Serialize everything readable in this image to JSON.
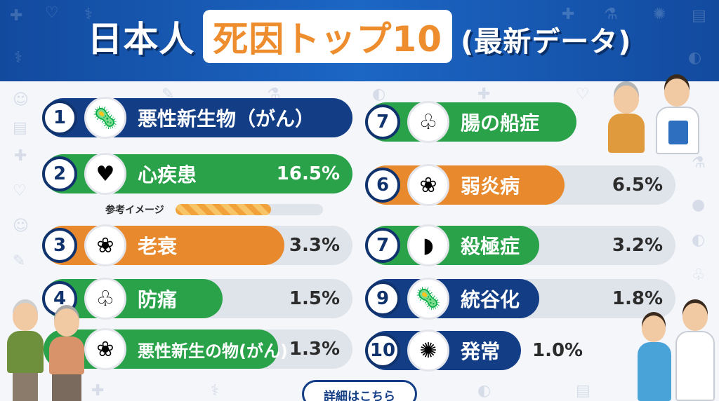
{
  "title": {
    "part1": "日本人",
    "part2": "死因トップ10",
    "part3": "(最新データ)"
  },
  "legend": {
    "label": "参考イメージ",
    "fill_fraction": 0.65
  },
  "left_column": [
    {
      "rank": "1",
      "icon": "virus-icon",
      "label": "悪性新生物（がん）",
      "percent": "",
      "color": "navy",
      "fill_fraction": 1.0
    },
    {
      "rank": "2",
      "icon": "heart-icon",
      "label": "心疾患",
      "percent": "16.5%",
      "color": "green",
      "fill_fraction": 1.0
    },
    {
      "rank": "3",
      "icon": "brain-icon",
      "label": "老衰",
      "percent": "3.3%",
      "color": "orange",
      "fill_fraction": 0.78
    },
    {
      "rank": "4",
      "icon": "lungs-icon",
      "label": "防痛",
      "percent": "1.5%",
      "color": "green",
      "fill_fraction": 0.58
    },
    {
      "rank": "",
      "icon": "brain-icon",
      "label": "悪性新生の物(がん)",
      "percent": "1.3%",
      "color": "green",
      "fill_fraction": 0.76
    }
  ],
  "right_column": [
    {
      "rank": "7",
      "icon": "lungs-icon",
      "label": "腸の船症",
      "percent": "",
      "color": "green",
      "fill_fraction": 0.68
    },
    {
      "rank": "6",
      "icon": "brain-icon",
      "label": "弱炎病",
      "percent": "6.5%",
      "color": "orange",
      "fill_fraction": 0.64
    },
    {
      "rank": "7",
      "icon": "organ-icon",
      "label": "殺極症",
      "percent": "3.2%",
      "color": "green",
      "fill_fraction": 0.56
    },
    {
      "rank": "9",
      "icon": "virus-icon",
      "label": "統谷化",
      "percent": "1.8%",
      "color": "navy",
      "fill_fraction": 0.56
    },
    {
      "rank": "10",
      "icon": "bacteria-icon",
      "label": "発常",
      "percent": "1.0%",
      "color": "navy",
      "fill_fraction": 0.5
    }
  ],
  "button": {
    "label": "詳細はこちら"
  },
  "colors": {
    "navy": "#133e86",
    "green": "#2aa24a",
    "orange": "#e7892c",
    "track": "#dfe3ea",
    "header": "#1c66c4"
  }
}
